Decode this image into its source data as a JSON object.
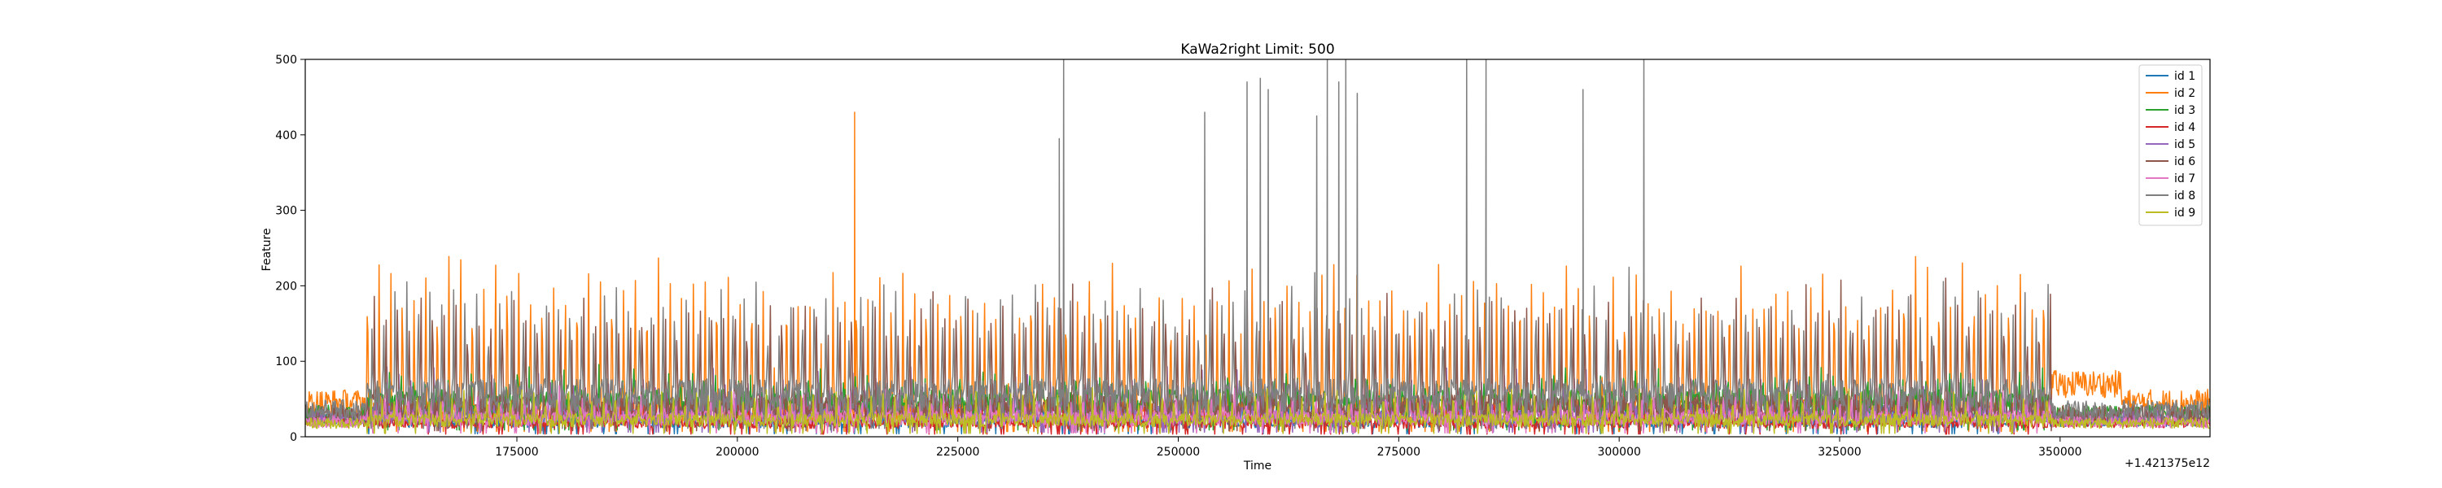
{
  "chart_data": {
    "type": "line",
    "title": "KaWa2right Limit: 500",
    "xlabel": "Time",
    "ylabel": "Feature",
    "x_offset_label": "+1.421375e12",
    "xlim": [
      151000,
      367000
    ],
    "ylim": [
      0,
      500
    ],
    "xticks": [
      175000,
      200000,
      225000,
      250000,
      275000,
      300000,
      325000,
      350000
    ],
    "xtick_labels": [
      "175000",
      "200000",
      "225000",
      "250000",
      "275000",
      "300000",
      "325000",
      "350000"
    ],
    "yticks": [
      0,
      100,
      200,
      300,
      400,
      500
    ],
    "ytick_labels": [
      "0",
      "100",
      "200",
      "300",
      "400",
      "500"
    ],
    "grid": false,
    "legend_position": "top-right",
    "active_range": [
      158000,
      349000
    ],
    "series": [
      {
        "name": "id 1",
        "color": "#1f77b4",
        "idle_level": 22,
        "active_base": 20,
        "peak": 55
      },
      {
        "name": "id 2",
        "color": "#ff7f0e",
        "idle_level": 45,
        "active_base": 35,
        "peak": 230
      },
      {
        "name": "id 3",
        "color": "#2ca02c",
        "idle_level": 30,
        "active_base": 45,
        "peak": 80
      },
      {
        "name": "id 4",
        "color": "#d62728",
        "idle_level": 20,
        "active_base": 18,
        "peak": 50
      },
      {
        "name": "id 5",
        "color": "#9467bd",
        "idle_level": 25,
        "active_base": 30,
        "peak": 85
      },
      {
        "name": "id 6",
        "color": "#8c564b",
        "idle_level": 30,
        "active_base": 40,
        "peak": 190
      },
      {
        "name": "id 7",
        "color": "#e377c2",
        "idle_level": 20,
        "active_base": 25,
        "peak": 60
      },
      {
        "name": "id 8",
        "color": "#7f7f7f",
        "idle_level": 35,
        "active_base": 55,
        "peak": 200
      },
      {
        "name": "id 9",
        "color": "#bcbd22",
        "idle_level": 18,
        "active_base": 22,
        "peak": 60
      }
    ],
    "notable_spikes": [
      {
        "series": "id 2",
        "x": 213300,
        "y": 430
      },
      {
        "series": "id 8",
        "x": 237000,
        "y": 500
      },
      {
        "series": "id 8",
        "x": 236500,
        "y": 395
      },
      {
        "series": "id 8",
        "x": 253000,
        "y": 430
      },
      {
        "series": "id 8",
        "x": 257800,
        "y": 470
      },
      {
        "series": "id 8",
        "x": 259300,
        "y": 475
      },
      {
        "series": "id 8",
        "x": 260200,
        "y": 460
      },
      {
        "series": "id 8",
        "x": 265700,
        "y": 425
      },
      {
        "series": "id 8",
        "x": 266900,
        "y": 500
      },
      {
        "series": "id 8",
        "x": 268200,
        "y": 470
      },
      {
        "series": "id 8",
        "x": 269000,
        "y": 500
      },
      {
        "series": "id 8",
        "x": 270300,
        "y": 455
      },
      {
        "series": "id 8",
        "x": 282700,
        "y": 500
      },
      {
        "series": "id 8",
        "x": 284900,
        "y": 500
      },
      {
        "series": "id 8",
        "x": 295900,
        "y": 460
      },
      {
        "series": "id 8",
        "x": 302800,
        "y": 500
      }
    ]
  }
}
